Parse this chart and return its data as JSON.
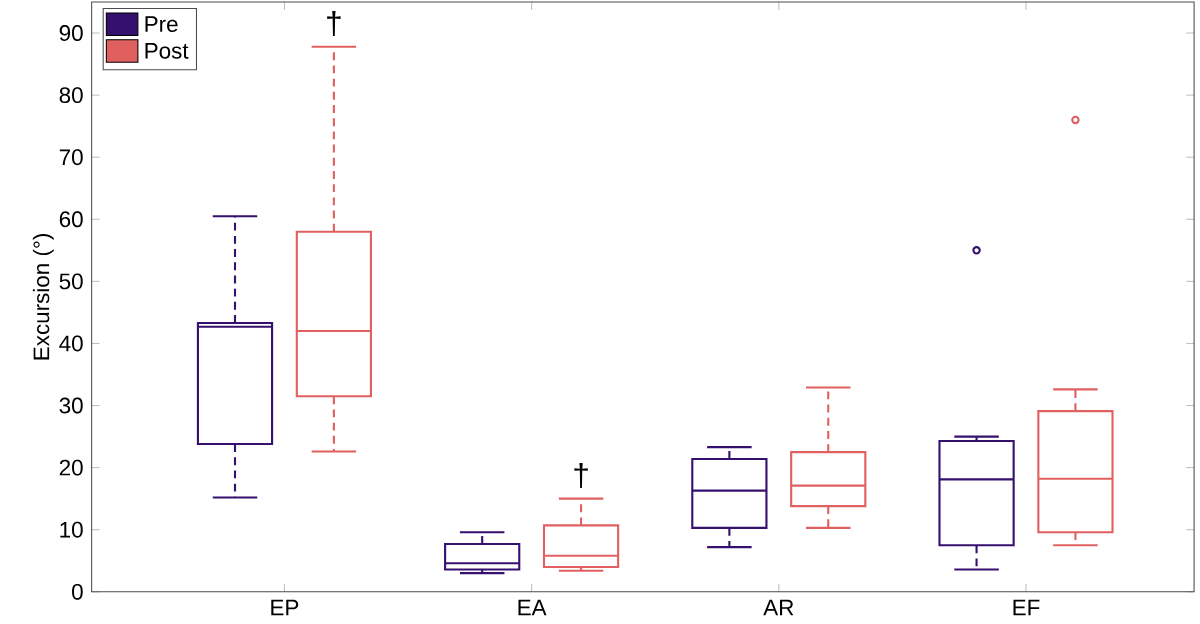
{
  "chart_data": {
    "type": "box",
    "ylabel": "Excursion (°)",
    "categories": [
      "EP",
      "EA",
      "AR",
      "EF"
    ],
    "series": [
      {
        "name": "Pre",
        "color": "#35106e",
        "boxes": [
          {
            "low": 15.2,
            "q1": 23.8,
            "median": 42.7,
            "q3": 43.3,
            "high": 60.5
          },
          {
            "low": 3.0,
            "q1": 3.6,
            "median": 4.6,
            "q3": 7.7,
            "high": 9.6
          },
          {
            "low": 7.2,
            "q1": 10.3,
            "median": 16.3,
            "q3": 21.4,
            "high": 23.3
          },
          {
            "low": 3.6,
            "q1": 7.5,
            "median": 18.1,
            "q3": 24.3,
            "high": 25.0,
            "outliers": [
              55.0
            ]
          }
        ]
      },
      {
        "name": "Post",
        "color": "#e06060",
        "boxes": [
          {
            "low": 22.6,
            "q1": 31.5,
            "median": 42.0,
            "q3": 58.0,
            "high": 87.8
          },
          {
            "low": 3.4,
            "q1": 4.0,
            "median": 5.8,
            "q3": 10.7,
            "high": 15.0
          },
          {
            "low": 10.3,
            "q1": 13.8,
            "median": 17.1,
            "q3": 22.5,
            "high": 32.9
          },
          {
            "low": 7.5,
            "q1": 9.6,
            "median": 18.2,
            "q3": 29.1,
            "high": 32.6,
            "outliers": [
              76.0
            ]
          }
        ]
      }
    ],
    "annotations": [
      "†",
      "†"
    ],
    "ylim": [
      0,
      95
    ],
    "yticks": [
      0,
      10,
      20,
      30,
      40,
      50,
      60,
      70,
      80,
      90
    ],
    "legend": "top left"
  }
}
